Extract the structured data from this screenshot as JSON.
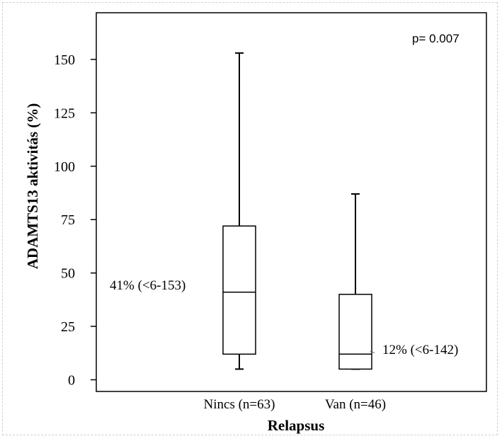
{
  "chart_data": {
    "type": "box",
    "title": "",
    "xlabel": "Relapsus",
    "ylabel": "ADAMTS13 aktivitás (%)",
    "ylim": [
      -5,
      170
    ],
    "yticks": [
      0,
      25,
      50,
      75,
      100,
      125,
      150
    ],
    "ytick_labels": [
      "0",
      "25",
      "50",
      "75",
      "100",
      "125",
      "150"
    ],
    "grid": false,
    "categories": [
      "Nincs (n=63)",
      "Van (n=46)"
    ],
    "boxes": [
      {
        "category": "Nincs (n=63)",
        "min": 5,
        "q1": 12,
        "median": 41,
        "q3": 72,
        "max": 153,
        "label": "41% (<6-153)"
      },
      {
        "category": "Van (n=46)",
        "min": 5,
        "q1": 5,
        "median": 12,
        "q3": 40,
        "max": 87,
        "label": "12% (<6-142)"
      }
    ],
    "annotation": "p= 0.007"
  }
}
